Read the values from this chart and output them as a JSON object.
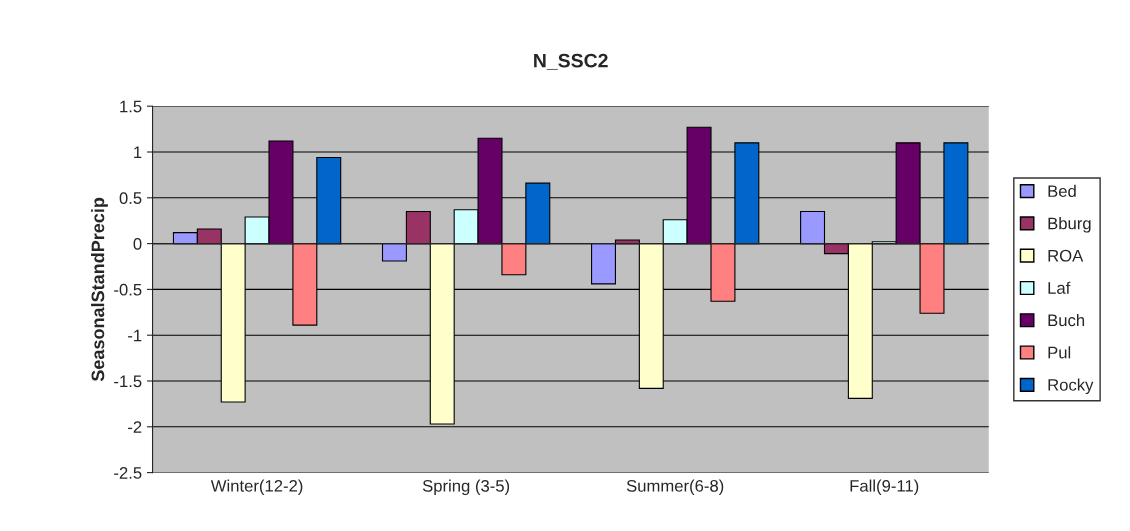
{
  "chart_data": {
    "type": "bar",
    "title": "N_SSC2",
    "ylabel": "SeasonalStandPrecip",
    "categories": [
      "Winter(12-2)",
      "Spring (3-5)",
      "Summer(6-8)",
      "Fall(9-11)"
    ],
    "series": [
      {
        "name": "Bed",
        "color": "#9999ff",
        "values": [
          0.12,
          -0.19,
          -0.44,
          0.35
        ]
      },
      {
        "name": "Bburg",
        "color": "#993366",
        "values": [
          0.16,
          0.35,
          0.04,
          -0.11
        ]
      },
      {
        "name": "ROA",
        "color": "#ffffcc",
        "values": [
          -1.73,
          -1.97,
          -1.58,
          -1.69
        ]
      },
      {
        "name": "Laf",
        "color": "#ccffff",
        "values": [
          0.29,
          0.37,
          0.26,
          0.02
        ]
      },
      {
        "name": "Buch",
        "color": "#660066",
        "values": [
          1.12,
          1.15,
          1.27,
          1.1
        ]
      },
      {
        "name": "Pul",
        "color": "#ff8080",
        "values": [
          -0.89,
          -0.34,
          -0.63,
          -0.76
        ]
      },
      {
        "name": "Rocky",
        "color": "#0066cc",
        "values": [
          0.94,
          0.66,
          1.1,
          1.1
        ]
      }
    ],
    "ylim": [
      -2.5,
      1.5
    ],
    "yticks": [
      -2.5,
      -2,
      -1.5,
      -1,
      -0.5,
      0,
      0.5,
      1,
      1.5
    ],
    "grid": "y",
    "legend": "right"
  }
}
